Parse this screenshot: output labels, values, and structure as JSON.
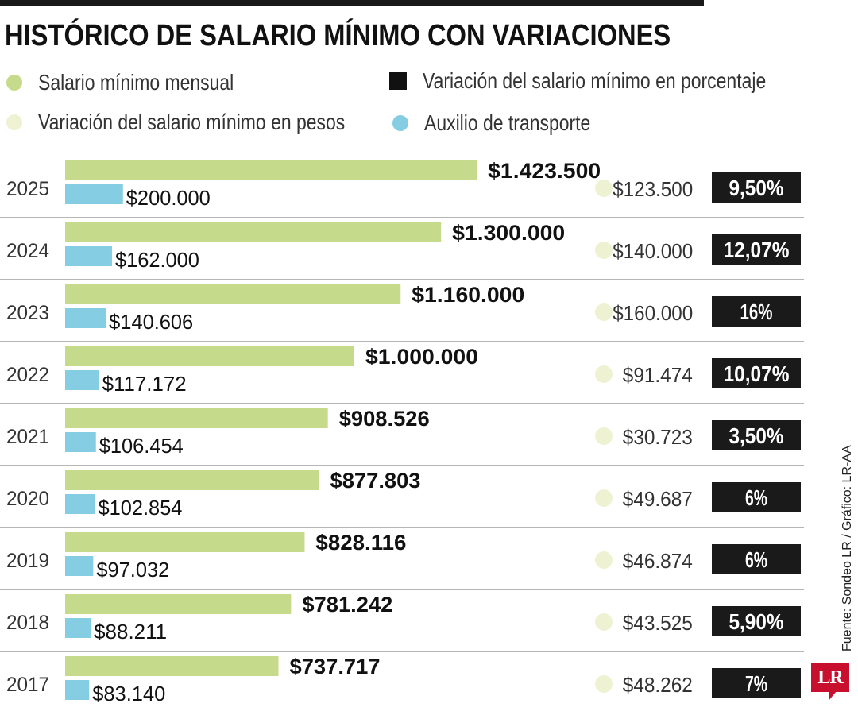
{
  "title": "HISTÓRICO DE SALARIO MÍNIMO CON VARIACIONES",
  "legend": {
    "salary": "Salario mínimo mensual",
    "var_pesos": "Variación del salario mínimo en pesos",
    "var_pct": "Variación del salario mínimo en porcentaje",
    "transport": "Auxilio de transporte"
  },
  "source": "Fuente: Sondeo LR / Gráfico: LR-AA",
  "logo": "LR",
  "colors": {
    "salary": "#c6da8b",
    "transport": "#85cde3",
    "var_pesos": "#eef2d2",
    "pct_box": "#1a1a1a",
    "divider": "#6b6b6b"
  },
  "chart_data": {
    "type": "bar",
    "orientation": "horizontal",
    "title": "HISTÓRICO DE SALARIO MÍNIMO CON VARIACIONES",
    "categories": [
      "2025",
      "2024",
      "2023",
      "2022",
      "2021",
      "2020",
      "2019",
      "2018",
      "2017"
    ],
    "series": [
      {
        "name": "Salario mínimo mensual",
        "values": [
          1423500,
          1300000,
          1160000,
          1000000,
          908526,
          877803,
          828116,
          781242,
          737717
        ],
        "labels": [
          "$1.423.500",
          "$1.300.000",
          "$1.160.000",
          "$1.000.000",
          "$908.526",
          "$877.803",
          "$828.116",
          "$781.242",
          "$737.717"
        ]
      },
      {
        "name": "Auxilio de transporte",
        "values": [
          200000,
          162000,
          140606,
          117172,
          106454,
          102854,
          97032,
          88211,
          83140
        ],
        "labels": [
          "$200.000",
          "$162.000",
          "$140.606",
          "$117.172",
          "$106.454",
          "$102.854",
          "$97.032",
          "$88.211",
          "$83.140"
        ]
      },
      {
        "name": "Variación del salario mínimo en pesos",
        "values": [
          123500,
          140000,
          160000,
          91474,
          30723,
          49687,
          46874,
          43525,
          48262
        ],
        "labels": [
          "$123.500",
          "$140.000",
          "$160.000",
          "$91.474",
          "$30.723",
          "$49.687",
          "$46.874",
          "$43.525",
          "$48.262"
        ]
      },
      {
        "name": "Variación del salario mínimo en porcentaje",
        "values": [
          9.5,
          12.07,
          16,
          10.07,
          3.5,
          6,
          6,
          5.9,
          7
        ],
        "labels": [
          "9,50%",
          "12,07%",
          "16%",
          "10,07%",
          "3,50%",
          "6%",
          "6%",
          "5,90%",
          "7%"
        ]
      }
    ],
    "xlim": [
      0,
      1600000
    ],
    "legend": "top",
    "grid": false
  }
}
